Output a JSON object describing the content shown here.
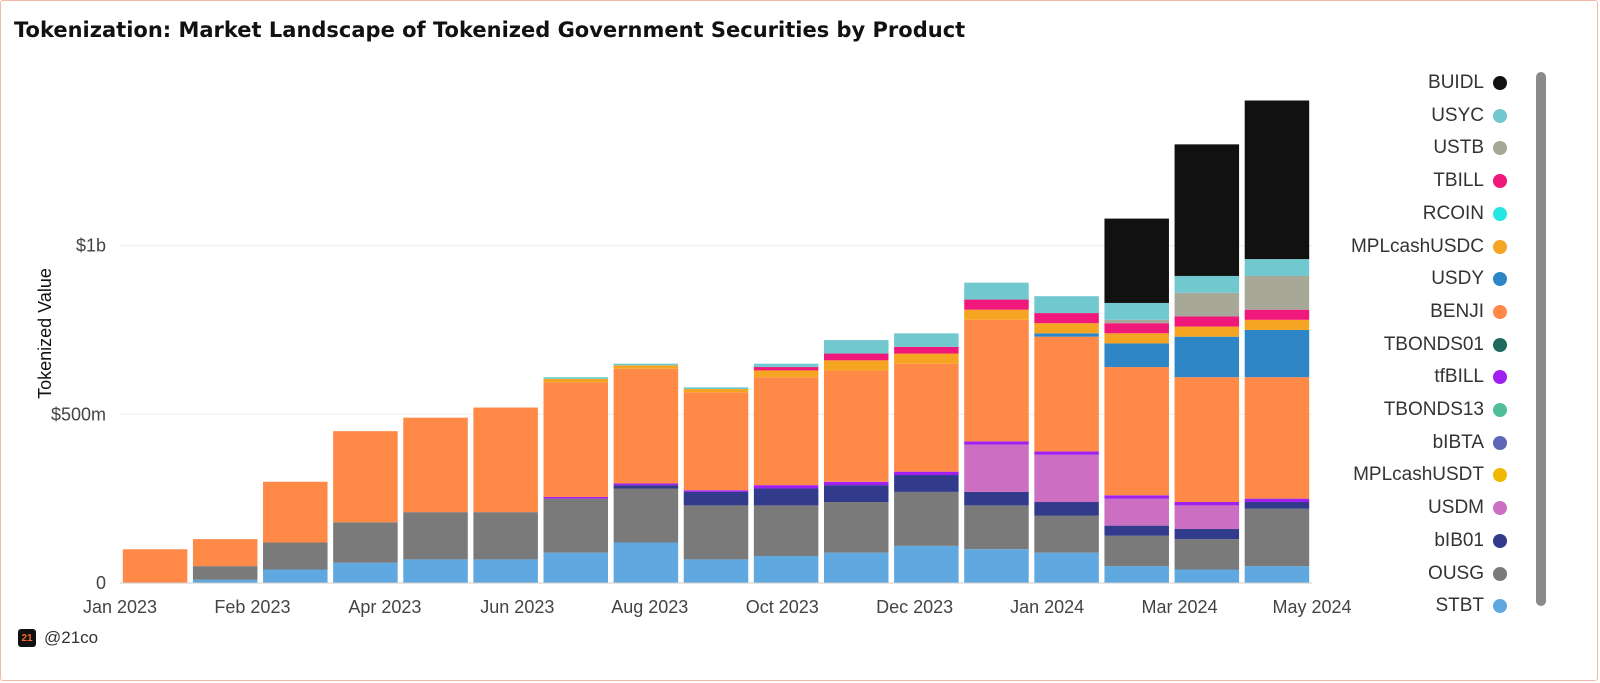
{
  "title": "Tokenization: Market Landscape of Tokenized Government Securities by Product",
  "footer": {
    "brand": "@21co",
    "logo": "21"
  },
  "chart_data": {
    "type": "bar",
    "stacked": true,
    "title": "Tokenization: Market Landscape of Tokenized Government Securities by Product",
    "xlabel": "",
    "ylabel": "Tokenized Value",
    "ylim": [
      0,
      1.55
    ],
    "y_unit": "billions USD",
    "yticks": [
      {
        "value": 0,
        "label": "0"
      },
      {
        "value": 0.5,
        "label": "$500m"
      },
      {
        "value": 1.0,
        "label": "$1b"
      }
    ],
    "grid": true,
    "legend_position": "right",
    "xticks": [
      "Jan 2023",
      "Feb 2023",
      "Apr 2023",
      "Jun 2023",
      "Aug 2023",
      "Oct 2023",
      "Dec 2023",
      "Jan 2024",
      "Mar 2024",
      "May 2024"
    ],
    "x": [
      "Jan 2023",
      "Feb 2023",
      "Mar 2023",
      "Apr 2023",
      "May 2023",
      "Jun 2023",
      "Jul 2023",
      "Aug 2023",
      "Sep 2023",
      "Oct 2023",
      "Nov 2023",
      "Dec 2023",
      "Jan 2024",
      "Feb 2024",
      "Mar 2024",
      "Apr 2024",
      "May 2024"
    ],
    "series": [
      {
        "name": "STBT",
        "color": "#5fa8e0",
        "values": [
          0,
          0.01,
          0.04,
          0.06,
          0.07,
          0.07,
          0.09,
          0.12,
          0.07,
          0.08,
          0.09,
          0.11,
          0.1,
          0.09,
          0.05,
          0.04,
          0.05
        ]
      },
      {
        "name": "OUSG",
        "color": "#7a7a7a",
        "values": [
          0,
          0.04,
          0.08,
          0.12,
          0.14,
          0.14,
          0.16,
          0.16,
          0.16,
          0.15,
          0.15,
          0.16,
          0.13,
          0.11,
          0.09,
          0.09,
          0.17
        ]
      },
      {
        "name": "bIB01",
        "color": "#323a8c",
        "values": [
          0,
          0,
          0,
          0,
          0,
          0,
          0,
          0.01,
          0.04,
          0.05,
          0.05,
          0.05,
          0.04,
          0.04,
          0.03,
          0.03,
          0.02
        ]
      },
      {
        "name": "USDM",
        "color": "#cc6fc2",
        "values": [
          0,
          0,
          0,
          0,
          0,
          0,
          0,
          0,
          0,
          0,
          0,
          0,
          0.14,
          0.14,
          0.08,
          0.07,
          0.0
        ]
      },
      {
        "name": "MPLcashUSDT",
        "color": "#f0b800",
        "values": [
          0,
          0,
          0,
          0,
          0,
          0,
          0,
          0,
          0,
          0,
          0,
          0,
          0,
          0,
          0,
          0,
          0
        ]
      },
      {
        "name": "bIBTA",
        "color": "#5e66b8",
        "values": [
          0,
          0,
          0,
          0,
          0,
          0,
          0,
          0,
          0,
          0,
          0,
          0,
          0,
          0,
          0,
          0,
          0
        ]
      },
      {
        "name": "TBONDS13",
        "color": "#4fbf9a",
        "values": [
          0,
          0,
          0,
          0,
          0,
          0,
          0,
          0,
          0,
          0,
          0,
          0,
          0,
          0,
          0,
          0,
          0
        ]
      },
      {
        "name": "tfBILL",
        "color": "#a020f0",
        "values": [
          0,
          0,
          0,
          0,
          0,
          0,
          0.005,
          0.005,
          0.005,
          0.01,
          0.01,
          0.01,
          0.01,
          0.01,
          0.01,
          0.01,
          0.01
        ]
      },
      {
        "name": "TBONDS01",
        "color": "#1d6b5f",
        "values": [
          0,
          0,
          0,
          0,
          0,
          0,
          0,
          0,
          0,
          0,
          0,
          0,
          0,
          0,
          0,
          0,
          0
        ]
      },
      {
        "name": "BENJI",
        "color": "#ff8a47",
        "values": [
          0.1,
          0.08,
          0.18,
          0.27,
          0.28,
          0.31,
          0.34,
          0.34,
          0.29,
          0.32,
          0.33,
          0.32,
          0.36,
          0.34,
          0.38,
          0.37,
          0.36
        ]
      },
      {
        "name": "USDY",
        "color": "#2f86c6",
        "values": [
          0,
          0,
          0,
          0,
          0,
          0,
          0,
          0,
          0,
          0,
          0,
          0,
          0,
          0.01,
          0.07,
          0.12,
          0.14
        ]
      },
      {
        "name": "MPLcashUSDC",
        "color": "#f5a522",
        "values": [
          0,
          0,
          0,
          0,
          0,
          0,
          0.01,
          0.01,
          0.01,
          0.02,
          0.03,
          0.03,
          0.03,
          0.03,
          0.03,
          0.03,
          0.03
        ]
      },
      {
        "name": "RCOIN",
        "color": "#25e6e0",
        "values": [
          0,
          0,
          0,
          0,
          0,
          0,
          0,
          0,
          0,
          0,
          0,
          0,
          0,
          0,
          0,
          0,
          0
        ]
      },
      {
        "name": "TBILL",
        "color": "#f0187a",
        "values": [
          0,
          0,
          0,
          0,
          0,
          0,
          0,
          0,
          0,
          0.01,
          0.02,
          0.02,
          0.03,
          0.03,
          0.03,
          0.03,
          0.03
        ]
      },
      {
        "name": "USTB",
        "color": "#a8a898",
        "values": [
          0,
          0,
          0,
          0,
          0,
          0,
          0,
          0,
          0,
          0,
          0,
          0,
          0,
          0,
          0.01,
          0.07,
          0.1
        ]
      },
      {
        "name": "USYC",
        "color": "#72c8cf",
        "values": [
          0,
          0,
          0,
          0,
          0,
          0,
          0.005,
          0.005,
          0.005,
          0.01,
          0.04,
          0.04,
          0.05,
          0.05,
          0.05,
          0.05,
          0.05
        ]
      },
      {
        "name": "BUIDL",
        "color": "#111111",
        "values": [
          0,
          0,
          0,
          0,
          0,
          0,
          0,
          0,
          0,
          0,
          0,
          0,
          0,
          0,
          0.25,
          0.39,
          0.47
        ]
      }
    ]
  }
}
